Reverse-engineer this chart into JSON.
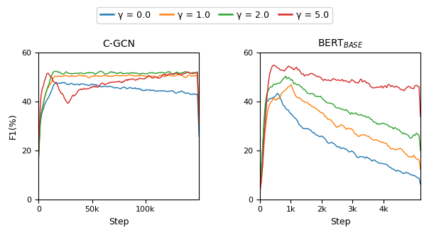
{
  "title_left": "C-GCN",
  "title_right": "BERT$_{BASE}$",
  "ylabel": "F1(%)",
  "xlabel": "Step",
  "legend_labels": [
    "γ = 0.0",
    "γ = 1.0",
    "γ = 2.0",
    "γ = 5.0"
  ],
  "colors": [
    "#1f77b4",
    "#ff7f0e",
    "#2ca02c",
    "#d62728"
  ],
  "ylim": [
    0,
    60
  ],
  "left_xlim": [
    0,
    150000
  ],
  "right_xlim": [
    0,
    5200
  ],
  "left_xticks": [
    0,
    50000,
    100000
  ],
  "left_xticklabels": [
    "0",
    "50k",
    "100k"
  ],
  "right_xticks": [
    0,
    1000,
    2000,
    3000,
    4000
  ],
  "right_xticklabels": [
    "0",
    "1k",
    "2k",
    "3k",
    "4k"
  ],
  "yticks": [
    0,
    20,
    40,
    60
  ],
  "seed": 42,
  "figsize": [
    6.04,
    3.38
  ],
  "dpi": 100
}
